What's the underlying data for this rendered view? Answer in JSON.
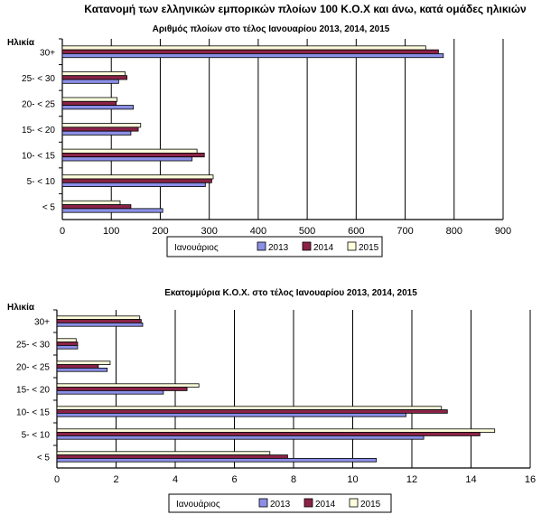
{
  "page_title": "Κατανομή των ελληνικών εμπορικών πλοίων 100 Κ.Ο.Χ και άνω, κατά ομάδες ηλικιών",
  "colors": {
    "2013": "#8B8FE6",
    "2014": "#8B2346",
    "2015": "#FFFFDD",
    "outline": "#000000",
    "grid": "#000000"
  },
  "chart_data": [
    {
      "type": "bar",
      "orientation": "horizontal",
      "title": "Αριθμός πλοίων στο τέλος Ιανουαρίου 2013, 2014, 2015",
      "ylabel": "Ηλικία",
      "xlabel": "",
      "categories": [
        "30+",
        "25- < 30",
        "20- < 25",
        "15- < 20",
        "10- < 15",
        "5- < 10",
        "< 5"
      ],
      "series": [
        {
          "name": "2013",
          "values": [
            778,
            115,
            145,
            140,
            265,
            292,
            205
          ]
        },
        {
          "name": "2014",
          "values": [
            768,
            132,
            110,
            155,
            290,
            305,
            140
          ]
        },
        {
          "name": "2015",
          "values": [
            742,
            128,
            112,
            160,
            275,
            308,
            118
          ]
        }
      ],
      "xlim": [
        0,
        900
      ],
      "xticks": [
        "0",
        "100",
        "200",
        "300",
        "400",
        "500",
        "600",
        "700",
        "800",
        "900"
      ],
      "legend_title": "Ιανουάριος",
      "legend_labels": [
        "2013",
        "2014",
        "2015"
      ],
      "grid": true
    },
    {
      "type": "bar",
      "orientation": "horizontal",
      "title": "Εκατομμύρια Κ.Ο.Χ. στο τέλος Ιανουαρίου  2013, 2014, 2015",
      "ylabel": "Ηλικία",
      "xlabel": "",
      "categories": [
        "30+",
        "25- < 30",
        "20- < 25",
        "15- < 20",
        "10- < 15",
        "5- < 10",
        "< 5"
      ],
      "series": [
        {
          "name": "2013",
          "values": [
            2.9,
            0.7,
            1.7,
            3.6,
            11.8,
            12.4,
            10.8
          ]
        },
        {
          "name": "2014",
          "values": [
            2.85,
            0.7,
            1.4,
            4.4,
            13.2,
            14.3,
            7.8
          ]
        },
        {
          "name": "2015",
          "values": [
            2.8,
            0.65,
            1.8,
            4.8,
            13.0,
            14.8,
            7.2
          ]
        }
      ],
      "xlim": [
        0,
        16
      ],
      "xticks": [
        "0",
        "2",
        "4",
        "6",
        "8",
        "10",
        "12",
        "14",
        "16"
      ],
      "legend_title": "Ιανουάριος",
      "legend_labels": [
        "2013",
        "2014",
        "2015"
      ],
      "grid": true
    }
  ]
}
